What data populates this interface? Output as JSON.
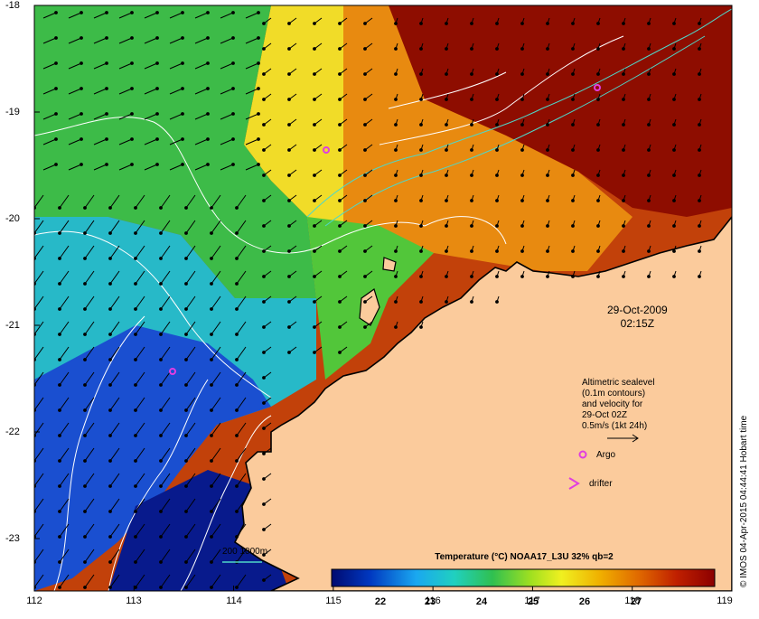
{
  "map": {
    "lon_ticks": [
      "112",
      "113",
      "114",
      "115",
      "116",
      "117",
      "118",
      "119"
    ],
    "lat_ticks": [
      "-18",
      "-19",
      "-20",
      "-21",
      "-22",
      "-23"
    ],
    "timestamp_date": "29-Oct-2009",
    "timestamp_time": "02:15Z",
    "legend_lines": [
      "Altimetric sealevel",
      "(0.1m contours)",
      "and velocity for",
      "29-Oct 02Z",
      "0.5m/s (1kt 24h)"
    ],
    "argo_label": "Argo",
    "drifter_label": "drifter",
    "depth_label": "200  1000m",
    "credit": "© IMOS 04-Apr-2015 04:44:41 Hobart time"
  },
  "colorbar": {
    "title": "Temperature (°C) NOAA17_L3U 32% qb=2",
    "ticks": [
      "22",
      "23",
      "24",
      "25",
      "26",
      "27"
    ]
  },
  "colors": {
    "land": "#fbcb9c",
    "coast": "#000000",
    "contour": "#ffffff",
    "depth_contour": "#4fd7c8",
    "argo": "#e03ee0"
  }
}
